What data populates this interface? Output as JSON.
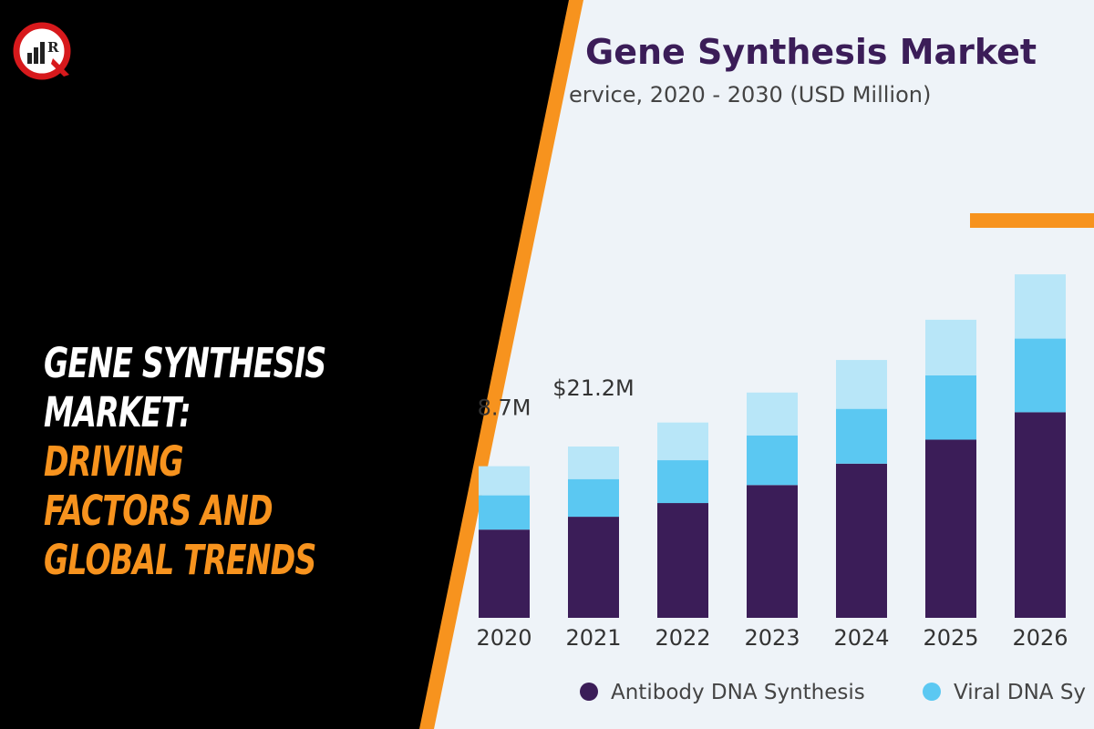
{
  "headline": {
    "line1": "GENE SYNTHESIS",
    "line2": "MARKET:",
    "line3": "DRIVING",
    "line4": "FACTORS AND",
    "line5": "GLOBAL TRENDS"
  },
  "logo": {
    "letters": "RQ",
    "ring_color": "#d7191c"
  },
  "colors": {
    "accent_orange": "#f7931e",
    "dark_purple": "#3b1d58",
    "mid_blue": "#5bc8f2",
    "light_blue": "#b8e6f8",
    "panel_bg": "#eef3f8"
  },
  "chart_data": {
    "type": "bar",
    "stacked": true,
    "title": "Gene Synthesis Market",
    "subtitle": "ervice, 2020 - 2030 (USD Million)",
    "categories": [
      "2020",
      "2021",
      "2022",
      "2023",
      "2024",
      "2025",
      "2026"
    ],
    "series": [
      {
        "name": "Antibody DNA Synthesis",
        "color": "#3b1d58",
        "values": [
          10.3,
          11.8,
          13.4,
          15.5,
          18.0,
          20.8,
          24.0
        ]
      },
      {
        "name": "Viral DNA Sy",
        "color": "#5bc8f2",
        "values": [
          4.0,
          4.4,
          5.0,
          5.8,
          6.4,
          7.5,
          8.6
        ]
      },
      {
        "name": "",
        "color": "#b8e6f8",
        "values": [
          3.4,
          3.8,
          4.4,
          5.0,
          5.7,
          6.5,
          7.5
        ]
      }
    ],
    "data_labels": [
      {
        "category": "2020",
        "text": "8.7M"
      },
      {
        "category": "2021",
        "text": "$21.2M"
      }
    ],
    "ylim": [
      0,
      45
    ],
    "legend_position": "bottom",
    "grid": false
  }
}
